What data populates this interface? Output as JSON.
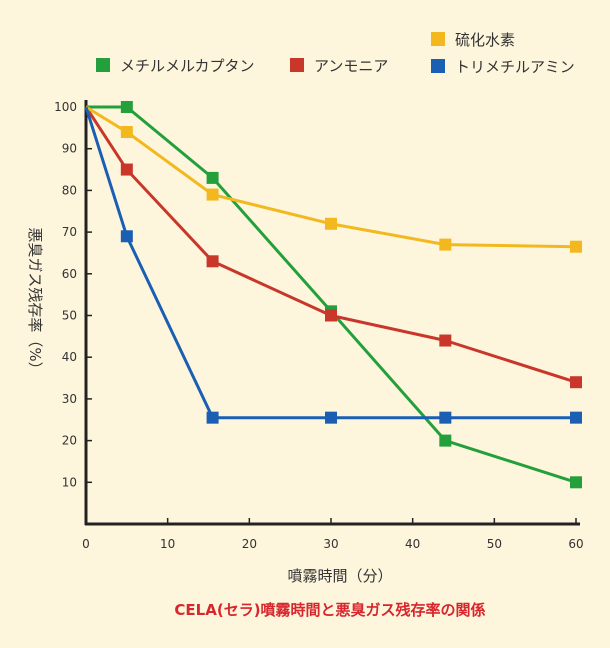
{
  "chart_data": {
    "type": "line",
    "title": "",
    "xlabel": "噴霧時間（分）",
    "ylabel": "悪臭ガス残存率（%）",
    "caption": "CELA(セラ)噴霧時間と悪臭ガス残存率の関係",
    "xlim": [
      0,
      60
    ],
    "ylim": [
      0,
      100
    ],
    "xticks": [
      0,
      10,
      20,
      30,
      40,
      50,
      60
    ],
    "yticks": [
      10,
      20,
      30,
      40,
      50,
      60,
      70,
      80,
      90,
      100
    ],
    "grid": false,
    "legend_placement": "top",
    "series": [
      {
        "name": "メチルメルカプタン",
        "color": "#23a03c",
        "x": [
          0,
          5,
          15.5,
          30,
          44,
          60
        ],
        "y": [
          100,
          100,
          83,
          51,
          20,
          10
        ]
      },
      {
        "name": "アンモニア",
        "color": "#c8372a",
        "x": [
          0,
          5,
          15.5,
          30,
          44,
          60
        ],
        "y": [
          100,
          85,
          63,
          50,
          44,
          34
        ]
      },
      {
        "name": "硫化水素",
        "color": "#f2b81e",
        "x": [
          0,
          5,
          15.5,
          30,
          44,
          60
        ],
        "y": [
          100,
          94,
          79,
          72,
          67,
          66.5
        ]
      },
      {
        "name": "トリメチルアミン",
        "color": "#1a5fb4",
        "x": [
          0,
          5,
          15.5,
          30,
          44,
          60
        ],
        "y": [
          100,
          69,
          25.5,
          25.5,
          25.5,
          25.5
        ]
      }
    ],
    "caption_color": "#d7262c",
    "axis_color": "#222222"
  }
}
